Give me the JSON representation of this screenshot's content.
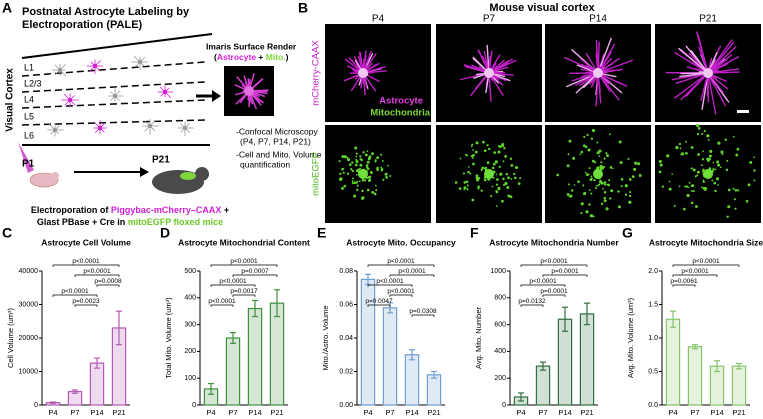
{
  "panel_a": {
    "letter": "A",
    "title_lines": [
      "Postnatal Astrocyte Labeling by",
      "Electroporation (PALE)"
    ],
    "layers": [
      "L1",
      "L2/3",
      "L4",
      "L5",
      "L6"
    ],
    "region": "Visual Cortex",
    "start_age": "P1",
    "end_age": "P21",
    "render_title": "Imaris Surface Render",
    "render_parts": [
      "(",
      "Astrocyte",
      " + ",
      "Mito.",
      ")"
    ],
    "methods": [
      "-Confocal Microscopy",
      "(P4, P7, P14, P21)",
      "-Cell and Mito. Volume",
      "quantification"
    ],
    "electroporation_line1": [
      "Electroporation of ",
      "Piggybac-mCherry–CAAX",
      " +"
    ],
    "electroporation_line2": [
      "Glast PBase + Cre in ",
      "mitoEGFP floxed mice"
    ]
  },
  "panel_b": {
    "letter": "B",
    "title": "Mouse visual cortex",
    "ages": [
      "P4",
      "P7",
      "P14",
      "P21"
    ],
    "rows": [
      "mCherry-CAAX",
      "mitoEGFP"
    ],
    "legend": [
      "Astrocyte",
      "Mitochondria"
    ]
  },
  "chart_data": [
    {
      "letter": "C",
      "type": "bar",
      "title": "Astrocyte Cell Volume",
      "y_label": "Cell Volume (um³)",
      "categories": [
        "P4",
        "P7",
        "P14",
        "P21"
      ],
      "values": [
        700,
        4000,
        12500,
        23000
      ],
      "errors": [
        200,
        500,
        1500,
        5000
      ],
      "color": "#b45ab4",
      "ylim": [
        0,
        40000
      ],
      "yticks": [
        0,
        10000,
        20000,
        30000,
        40000
      ],
      "comparisons": [
        {
          "label": "p<0.0001",
          "between": [
            "P4",
            "P21"
          ]
        },
        {
          "label": "p<0.0001",
          "between": [
            "P7",
            "P21"
          ]
        },
        {
          "label": "p=0.0008",
          "between": [
            "P14",
            "P21"
          ]
        },
        {
          "label": "p<0.0001",
          "between": [
            "P4",
            "P14"
          ]
        },
        {
          "label": "p=0.0023",
          "between": [
            "P7",
            "P14"
          ]
        }
      ]
    },
    {
      "letter": "D",
      "type": "bar",
      "title": "Astrocyte Mitochondrial Content",
      "y_label": "Total Mito. Volume (um³)",
      "categories": [
        "P4",
        "P7",
        "P14",
        "P21"
      ],
      "values": [
        60,
        250,
        360,
        380
      ],
      "errors": [
        20,
        20,
        30,
        50
      ],
      "color": "#3f8f3f",
      "ylim": [
        0,
        500
      ],
      "yticks": [
        0,
        100,
        200,
        300,
        400,
        500
      ],
      "comparisons": [
        {
          "label": "p<0.0001",
          "between": [
            "P4",
            "P21"
          ]
        },
        {
          "label": "p=0.0007",
          "between": [
            "P7",
            "P21"
          ]
        },
        {
          "label": "p<0.0001",
          "between": [
            "P4",
            "P14"
          ]
        },
        {
          "label": "p=0.0017",
          "between": [
            "P7",
            "P14"
          ]
        },
        {
          "label": "p<0.0001",
          "between": [
            "P4",
            "P7"
          ]
        }
      ]
    },
    {
      "letter": "E",
      "type": "bar",
      "title": "Astrocyte Mito. Occupancy",
      "y_label": "Mito./Astro. Volume",
      "categories": [
        "P4",
        "P7",
        "P14",
        "P21"
      ],
      "values": [
        0.075,
        0.058,
        0.03,
        0.018
      ],
      "errors": [
        0.003,
        0.003,
        0.003,
        0.002
      ],
      "color": "#6f9fd3",
      "ylim": [
        0,
        0.08
      ],
      "yticks": [
        {
          "value": 0,
          "label": "0.00"
        },
        0.02,
        0.04,
        0.06,
        0.08
      ],
      "comparisons": [
        {
          "label": "p<0.0001",
          "between": [
            "P4",
            "P21"
          ]
        },
        {
          "label": "p<0.0001",
          "between": [
            "P7",
            "P21"
          ]
        },
        {
          "label": "p<0.0001",
          "between": [
            "P4",
            "P14"
          ]
        },
        {
          "label": "p<0.0001",
          "between": [
            "P7",
            "P14"
          ]
        },
        {
          "label": "p=0.0047",
          "between": [
            "P4",
            "P7"
          ]
        },
        {
          "label": "p=0.0308",
          "between": [
            "P14",
            "P21"
          ]
        }
      ]
    },
    {
      "letter": "F",
      "type": "bar",
      "title": "Astrocyte Mitochondria Number",
      "y_label": "Avg. Mito. Number",
      "categories": [
        "P4",
        "P7",
        "P14",
        "P21"
      ],
      "values": [
        60,
        290,
        640,
        680
      ],
      "errors": [
        30,
        30,
        90,
        80
      ],
      "color": "#2f6f3f",
      "ylim": [
        0,
        1000
      ],
      "yticks": [
        0,
        200,
        400,
        600,
        800,
        1000
      ],
      "comparisons": [
        {
          "label": "p<0.0001",
          "between": [
            "P4",
            "P21"
          ]
        },
        {
          "label": "p=0.0001",
          "between": [
            "P7",
            "P21"
          ]
        },
        {
          "label": "p<0.0001",
          "between": [
            "P4",
            "P14"
          ]
        },
        {
          "label": "p=0.0001",
          "between": [
            "P7",
            "P14"
          ]
        },
        {
          "label": "p=0.0132",
          "between": [
            "P4",
            "P7"
          ]
        }
      ]
    },
    {
      "letter": "G",
      "type": "bar",
      "title": "Astrocyte Mitochondria Size",
      "y_label": "Avg. Mito. Volume (um³)",
      "categories": [
        "P4",
        "P7",
        "P14",
        "P21"
      ],
      "values": [
        1.28,
        0.87,
        0.58,
        0.58
      ],
      "errors": [
        0.12,
        0.03,
        0.08,
        0.04
      ],
      "color": "#86c46a",
      "ylim": [
        0,
        2
      ],
      "yticks": [
        {
          "value": 0,
          "label": "0.0"
        },
        0.5,
        {
          "value": 1,
          "label": "1.0"
        },
        1.5,
        {
          "value": 2,
          "label": "2.0"
        }
      ],
      "comparisons": [
        {
          "label": "p<0.0001",
          "between": [
            "P4",
            "P21"
          ]
        },
        {
          "label": "p<0.0001",
          "between": [
            "P4",
            "P14"
          ]
        },
        {
          "label": "p=0.0061",
          "between": [
            "P4",
            "P7"
          ]
        }
      ]
    }
  ]
}
